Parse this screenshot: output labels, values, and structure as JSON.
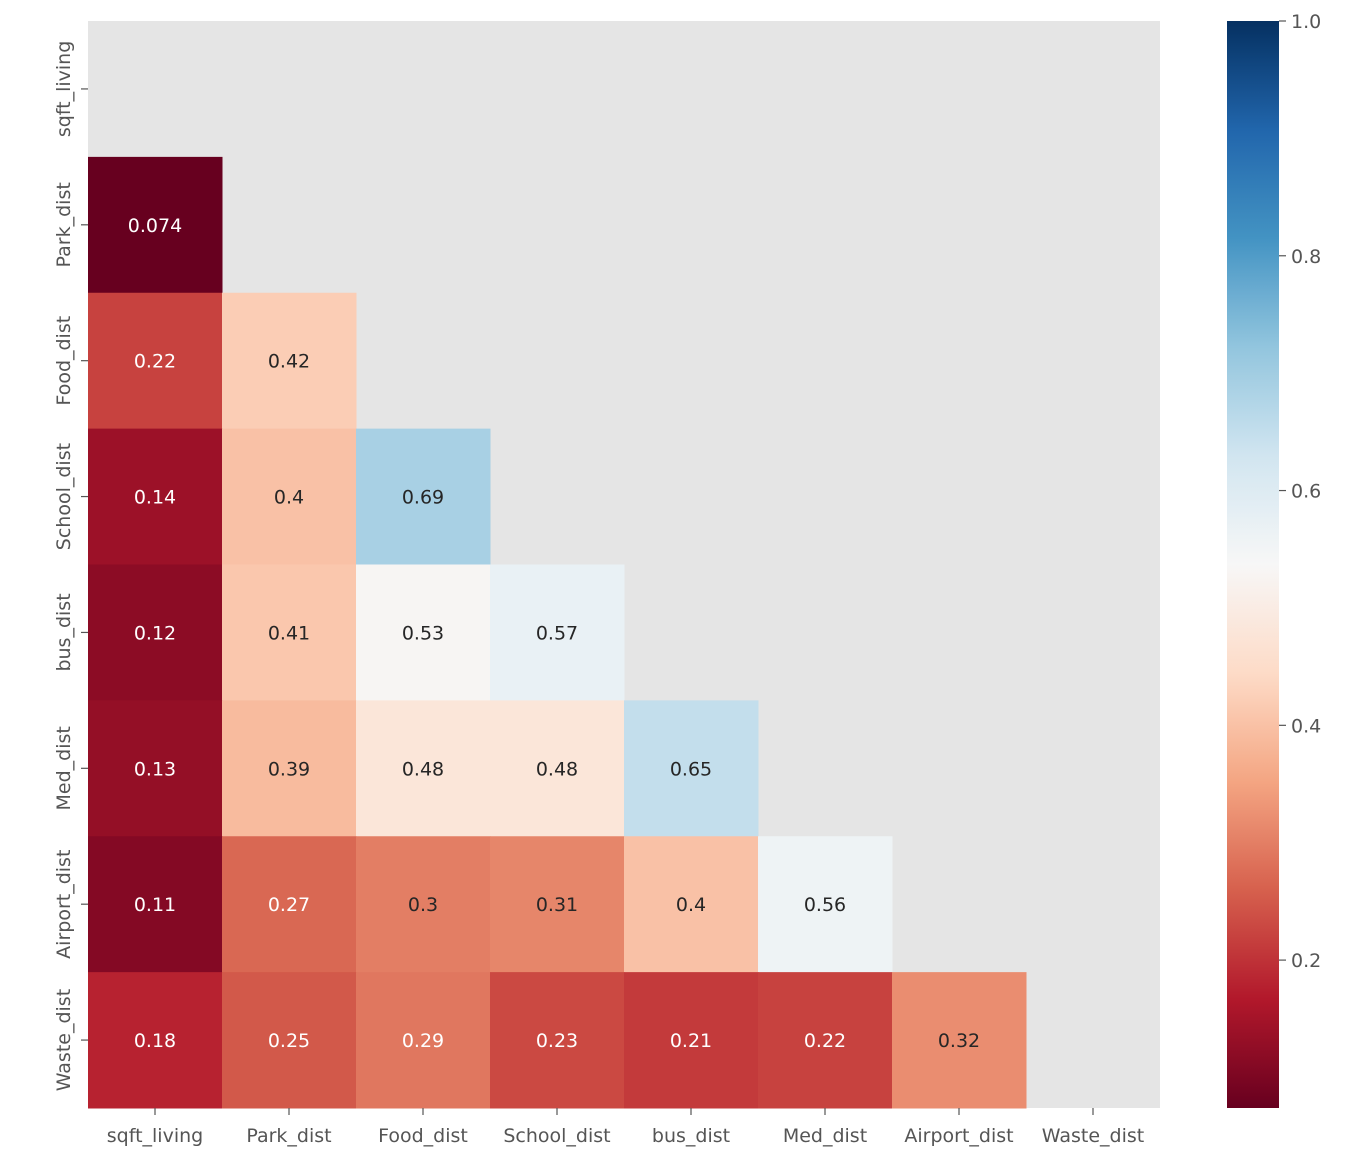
{
  "chart_data": {
    "type": "heatmap",
    "mask": "upper-triangle",
    "labels": [
      "sqft_living",
      "Park_dist",
      "Food_dist",
      "School_dist",
      "bus_dist",
      "Med_dist",
      "Airport_dist",
      "Waste_dist"
    ],
    "cells": [
      {
        "row": 1,
        "col": 0,
        "value": 0.074,
        "label": "0.074"
      },
      {
        "row": 2,
        "col": 0,
        "value": 0.22,
        "label": "0.22"
      },
      {
        "row": 2,
        "col": 1,
        "value": 0.42,
        "label": "0.42"
      },
      {
        "row": 3,
        "col": 0,
        "value": 0.14,
        "label": "0.14"
      },
      {
        "row": 3,
        "col": 1,
        "value": 0.4,
        "label": "0.4"
      },
      {
        "row": 3,
        "col": 2,
        "value": 0.69,
        "label": "0.69"
      },
      {
        "row": 4,
        "col": 0,
        "value": 0.12,
        "label": "0.12"
      },
      {
        "row": 4,
        "col": 1,
        "value": 0.41,
        "label": "0.41"
      },
      {
        "row": 4,
        "col": 2,
        "value": 0.53,
        "label": "0.53"
      },
      {
        "row": 4,
        "col": 3,
        "value": 0.57,
        "label": "0.57"
      },
      {
        "row": 5,
        "col": 0,
        "value": 0.13,
        "label": "0.13"
      },
      {
        "row": 5,
        "col": 1,
        "value": 0.39,
        "label": "0.39"
      },
      {
        "row": 5,
        "col": 2,
        "value": 0.48,
        "label": "0.48"
      },
      {
        "row": 5,
        "col": 3,
        "value": 0.48,
        "label": "0.48"
      },
      {
        "row": 5,
        "col": 4,
        "value": 0.65,
        "label": "0.65"
      },
      {
        "row": 6,
        "col": 0,
        "value": 0.11,
        "label": "0.11"
      },
      {
        "row": 6,
        "col": 1,
        "value": 0.27,
        "label": "0.27"
      },
      {
        "row": 6,
        "col": 2,
        "value": 0.3,
        "label": "0.3"
      },
      {
        "row": 6,
        "col": 3,
        "value": 0.31,
        "label": "0.31"
      },
      {
        "row": 6,
        "col": 4,
        "value": 0.4,
        "label": "0.4"
      },
      {
        "row": 6,
        "col": 5,
        "value": 0.56,
        "label": "0.56"
      },
      {
        "row": 7,
        "col": 0,
        "value": 0.18,
        "label": "0.18"
      },
      {
        "row": 7,
        "col": 1,
        "value": 0.25,
        "label": "0.25"
      },
      {
        "row": 7,
        "col": 2,
        "value": 0.29,
        "label": "0.29"
      },
      {
        "row": 7,
        "col": 3,
        "value": 0.23,
        "label": "0.23"
      },
      {
        "row": 7,
        "col": 4,
        "value": 0.21,
        "label": "0.21"
      },
      {
        "row": 7,
        "col": 5,
        "value": 0.22,
        "label": "0.22"
      },
      {
        "row": 7,
        "col": 6,
        "value": 0.32,
        "label": "0.32"
      }
    ],
    "colorbar": {
      "colormap": "RdBu",
      "vmin": 0.074,
      "vmax": 1.0,
      "ticks": [
        0.2,
        0.4,
        0.6,
        0.8,
        1.0
      ],
      "tick_labels": [
        "0.2",
        "0.4",
        "0.6",
        "0.8",
        "1.0"
      ]
    },
    "colors": {
      "mask_background": "#e5e5e5",
      "tick_text": "#555555"
    },
    "title": "",
    "xlabel": "",
    "ylabel": ""
  }
}
